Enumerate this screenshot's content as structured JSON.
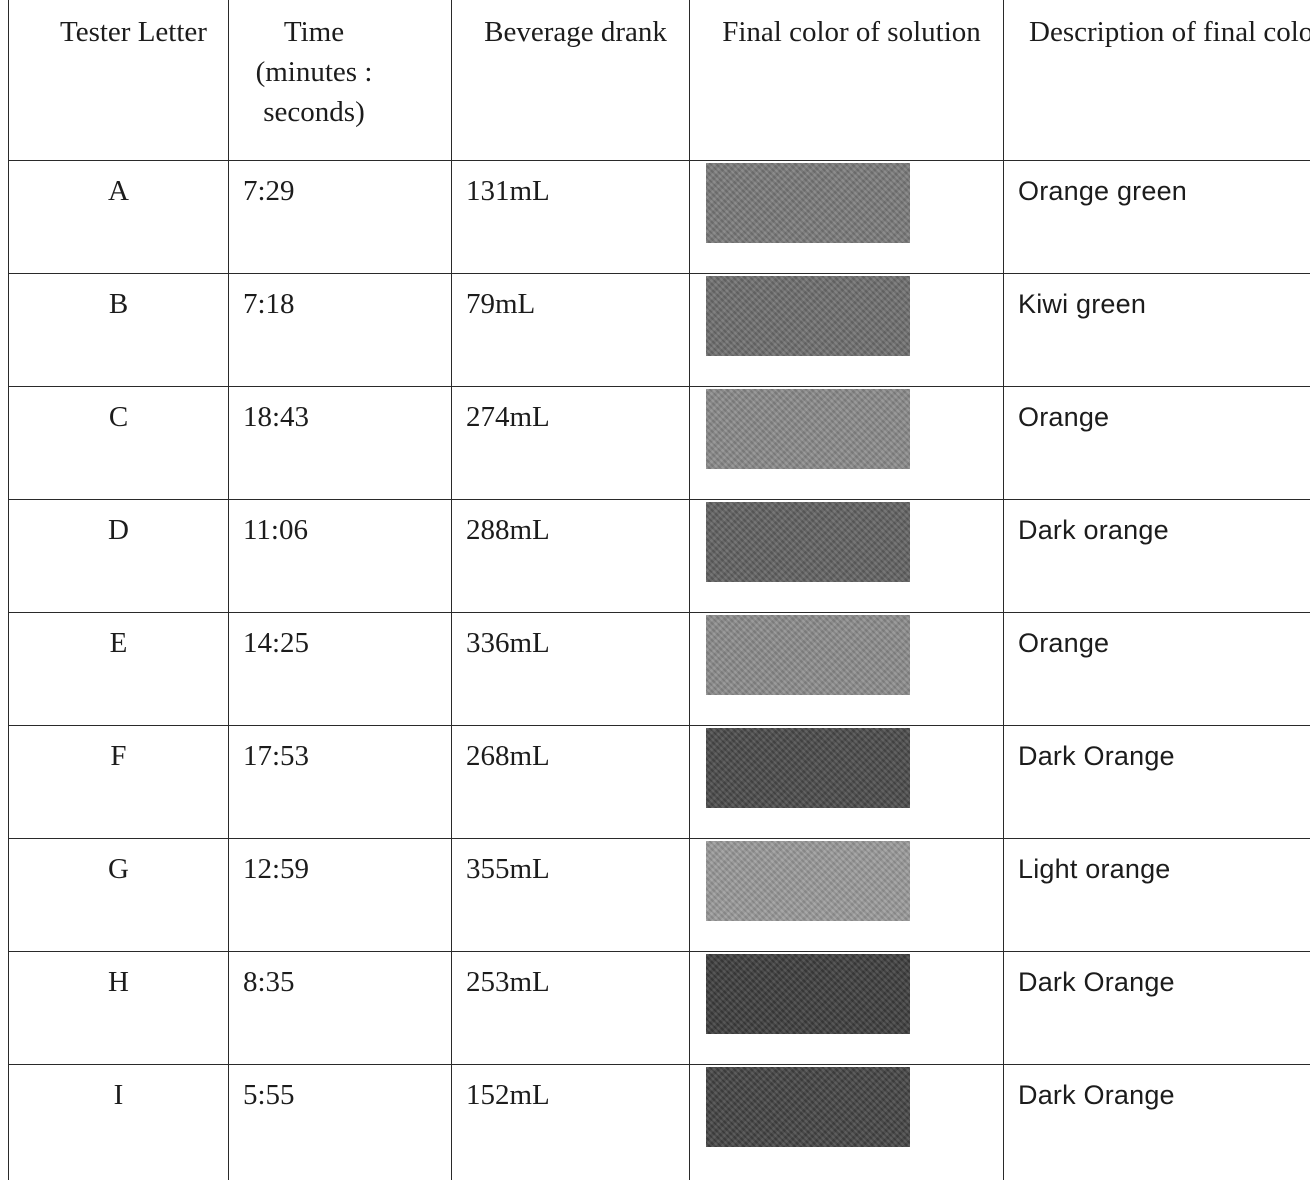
{
  "table": {
    "headers": [
      "Tester Letter",
      "Time (minutes : seconds)",
      "Beverage drank",
      "Final color of solution",
      "Description of final color"
    ],
    "rows": [
      {
        "letter": "A",
        "time": "7:29",
        "beverage": "131mL",
        "swatch_color": "#7a7a7a",
        "description": "Orange green"
      },
      {
        "letter": "B",
        "time": "7:18",
        "beverage": "79mL",
        "swatch_color": "#6e6e6e",
        "description": "Kiwi  green"
      },
      {
        "letter": "C",
        "time": "18:43",
        "beverage": "274mL",
        "swatch_color": "#8a8a8a",
        "description": "Orange"
      },
      {
        "letter": "D",
        "time": "11:06",
        "beverage": "288mL",
        "swatch_color": "#626262",
        "description": "Dark orange"
      },
      {
        "letter": "E",
        "time": "14:25",
        "beverage": "336mL",
        "swatch_color": "#8c8c8c",
        "description": "Orange"
      },
      {
        "letter": "F",
        "time": "17:53",
        "beverage": "268mL",
        "swatch_color": "#4a4a4a",
        "description": "Dark Orange"
      },
      {
        "letter": "G",
        "time": "12:59",
        "beverage": "355mL",
        "swatch_color": "#9a9a9a",
        "description": "Light orange"
      },
      {
        "letter": "H",
        "time": "8:35",
        "beverage": "253mL",
        "swatch_color": "#3e3e3e",
        "description": "Dark Orange"
      },
      {
        "letter": "I",
        "time": "5:55",
        "beverage": "152mL",
        "swatch_color": "#444444",
        "description": "Dark Orange"
      }
    ]
  }
}
